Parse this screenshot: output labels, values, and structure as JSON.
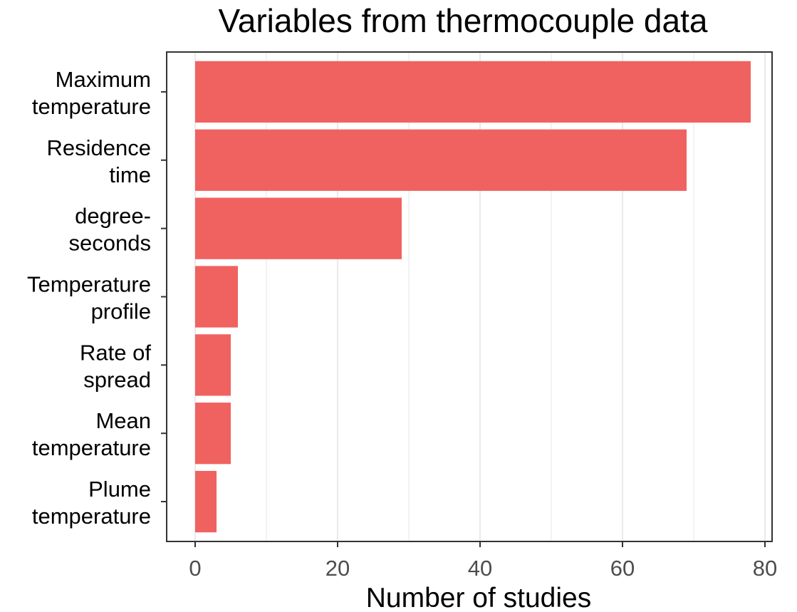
{
  "chart_data": {
    "type": "bar",
    "orientation": "horizontal",
    "title": "Variables from thermocouple data",
    "xlabel": "Number of studies",
    "ylabel": "",
    "categories": [
      [
        "Maximum",
        "temperature"
      ],
      [
        "Residence",
        "time"
      ],
      [
        "degree-",
        "seconds"
      ],
      [
        "Temperature",
        "profile"
      ],
      [
        "Rate of",
        "spread"
      ],
      [
        "Mean",
        "temperature"
      ],
      [
        "Plume",
        "temperature"
      ]
    ],
    "values": [
      78,
      69,
      29,
      6,
      5,
      5,
      3
    ],
    "xlim": [
      -4,
      81
    ],
    "xticks": [
      0,
      20,
      40,
      60,
      80
    ],
    "grid": true,
    "legend": "none",
    "bar_color": "#f06260",
    "grid_color": "#ebebeb",
    "frame_color": "#333333"
  }
}
